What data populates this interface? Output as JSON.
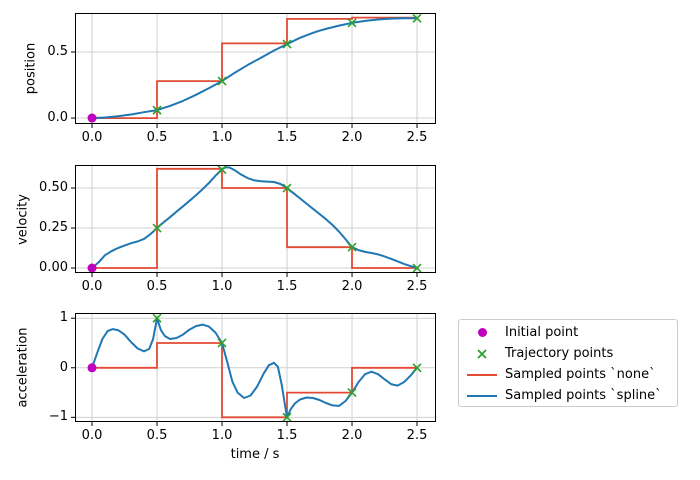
{
  "figure": {
    "background": "#ffffff"
  },
  "colors": {
    "spline": "#1f77b4",
    "none": "#e24a33",
    "trajectory": "#2ca02c",
    "initial": "#bf00bf",
    "grid": "#d0d0d0",
    "spine": "#000000",
    "text": "#000000",
    "legend_border": "#cccccc"
  },
  "legend": {
    "items": [
      {
        "label": "Initial point",
        "marker": "circle",
        "color_key": "initial"
      },
      {
        "label": "Trajectory points",
        "marker": "x",
        "color_key": "trajectory"
      },
      {
        "label": "Sampled points `none`",
        "marker": "line",
        "color_key": "none"
      },
      {
        "label": "Sampled points `spline`",
        "marker": "line",
        "color_key": "spline"
      }
    ]
  },
  "chart_data": {
    "type": "line",
    "title": "",
    "xlabel": "time / s",
    "xlim": [
      -0.131,
      2.646
    ],
    "x_ticks": [
      0.0,
      0.5,
      1.0,
      1.5,
      2.0,
      2.5
    ],
    "x_tick_labels": [
      "0.0",
      "0.5",
      "1.0",
      "1.5",
      "2.0",
      "2.5"
    ],
    "grid": true,
    "legend_position": "outside lower right",
    "trajectory_times": [
      0.5,
      1.0,
      1.5,
      2.0,
      2.5
    ],
    "subplots": [
      {
        "ylabel": "position",
        "ylim": [
          -0.045,
          0.795
        ],
        "y_ticks": [
          0.0,
          0.5
        ],
        "y_tick_labels": [
          "0.0",
          "0.5"
        ],
        "initial_point": [
          0.0,
          0.0
        ],
        "trajectory_values": [
          0.06,
          0.28,
          0.56,
          0.72,
          0.755
        ],
        "none_step_edges": [
          0.0,
          0.5,
          1.0,
          1.5,
          2.0,
          2.5
        ],
        "none_step_levels": [
          0.0,
          0.28,
          0.565,
          0.75,
          0.76
        ],
        "spline": [
          [
            0,
            0
          ],
          [
            0.1,
            0.004
          ],
          [
            0.2,
            0.013
          ],
          [
            0.3,
            0.027
          ],
          [
            0.4,
            0.044
          ],
          [
            0.5,
            0.06
          ],
          [
            0.6,
            0.092
          ],
          [
            0.7,
            0.13
          ],
          [
            0.8,
            0.176
          ],
          [
            0.9,
            0.227
          ],
          [
            1.0,
            0.28
          ],
          [
            1.1,
            0.344
          ],
          [
            1.2,
            0.403
          ],
          [
            1.3,
            0.457
          ],
          [
            1.4,
            0.511
          ],
          [
            1.5,
            0.56
          ],
          [
            1.6,
            0.607
          ],
          [
            1.7,
            0.645
          ],
          [
            1.75,
            0.661
          ],
          [
            1.8,
            0.675
          ],
          [
            1.9,
            0.7
          ],
          [
            2.0,
            0.72
          ],
          [
            2.1,
            0.735
          ],
          [
            2.2,
            0.746
          ],
          [
            2.3,
            0.753
          ],
          [
            2.4,
            0.7555
          ],
          [
            2.5,
            0.756
          ]
        ]
      },
      {
        "ylabel": "velocity",
        "ylim": [
          -0.031,
          0.644
        ],
        "y_ticks": [
          0.0,
          0.25,
          0.5
        ],
        "y_tick_labels": [
          "0.00",
          "0.25",
          "0.50"
        ],
        "initial_point": [
          0.0,
          0.0
        ],
        "trajectory_values": [
          0.25,
          0.615,
          0.5,
          0.13,
          0.0
        ],
        "none_step_edges": [
          0.0,
          0.5,
          1.0,
          1.5,
          2.0,
          2.5
        ],
        "none_step_levels": [
          0.0,
          0.62,
          0.5,
          0.13,
          0.0
        ],
        "spline": [
          [
            0,
            0
          ],
          [
            0.05,
            0.035
          ],
          [
            0.1,
            0.08
          ],
          [
            0.15,
            0.105
          ],
          [
            0.2,
            0.125
          ],
          [
            0.25,
            0.14
          ],
          [
            0.3,
            0.155
          ],
          [
            0.35,
            0.166
          ],
          [
            0.4,
            0.182
          ],
          [
            0.45,
            0.212
          ],
          [
            0.5,
            0.25
          ],
          [
            0.55,
            0.285
          ],
          [
            0.6,
            0.318
          ],
          [
            0.65,
            0.352
          ],
          [
            0.7,
            0.386
          ],
          [
            0.75,
            0.42
          ],
          [
            0.8,
            0.455
          ],
          [
            0.85,
            0.492
          ],
          [
            0.9,
            0.532
          ],
          [
            0.95,
            0.577
          ],
          [
            1.0,
            0.618
          ],
          [
            1.03,
            0.63
          ],
          [
            1.06,
            0.628
          ],
          [
            1.1,
            0.61
          ],
          [
            1.15,
            0.583
          ],
          [
            1.2,
            0.561
          ],
          [
            1.25,
            0.548
          ],
          [
            1.3,
            0.542
          ],
          [
            1.35,
            0.54
          ],
          [
            1.4,
            0.538
          ],
          [
            1.45,
            0.525
          ],
          [
            1.5,
            0.5
          ],
          [
            1.55,
            0.468
          ],
          [
            1.6,
            0.435
          ],
          [
            1.65,
            0.403
          ],
          [
            1.7,
            0.37
          ],
          [
            1.75,
            0.338
          ],
          [
            1.8,
            0.305
          ],
          [
            1.85,
            0.269
          ],
          [
            1.9,
            0.228
          ],
          [
            1.95,
            0.181
          ],
          [
            2.0,
            0.13
          ],
          [
            2.05,
            0.112
          ],
          [
            2.1,
            0.101
          ],
          [
            2.15,
            0.094
          ],
          [
            2.2,
            0.085
          ],
          [
            2.25,
            0.073
          ],
          [
            2.3,
            0.058
          ],
          [
            2.35,
            0.042
          ],
          [
            2.4,
            0.026
          ],
          [
            2.45,
            0.012
          ],
          [
            2.5,
            0
          ]
        ]
      },
      {
        "ylabel": "acceleration",
        "ylim": [
          -1.094,
          1.105
        ],
        "y_ticks": [
          -1,
          0,
          1
        ],
        "y_tick_labels": [
          "−1",
          "0",
          "1"
        ],
        "initial_point": [
          0.0,
          0.0
        ],
        "trajectory_values": [
          1.0,
          0.5,
          -1.0,
          -0.5,
          0.0
        ],
        "none_step_edges": [
          0.0,
          0.5,
          1.0,
          1.5,
          2.0,
          2.5
        ],
        "none_step_levels": [
          0.0,
          0.5,
          -1.0,
          -0.5,
          0.0
        ],
        "spline": [
          [
            0,
            0
          ],
          [
            0.04,
            0.3
          ],
          [
            0.08,
            0.58
          ],
          [
            0.12,
            0.74
          ],
          [
            0.16,
            0.78
          ],
          [
            0.2,
            0.76
          ],
          [
            0.25,
            0.67
          ],
          [
            0.3,
            0.52
          ],
          [
            0.35,
            0.39
          ],
          [
            0.4,
            0.33
          ],
          [
            0.44,
            0.38
          ],
          [
            0.47,
            0.58
          ],
          [
            0.5,
            1.0
          ],
          [
            0.53,
            0.76
          ],
          [
            0.56,
            0.64
          ],
          [
            0.6,
            0.58
          ],
          [
            0.65,
            0.6
          ],
          [
            0.7,
            0.67
          ],
          [
            0.75,
            0.77
          ],
          [
            0.8,
            0.84
          ],
          [
            0.85,
            0.87
          ],
          [
            0.9,
            0.83
          ],
          [
            0.95,
            0.71
          ],
          [
            1.0,
            0.5
          ],
          [
            1.04,
            0.12
          ],
          [
            1.08,
            -0.28
          ],
          [
            1.12,
            -0.5
          ],
          [
            1.17,
            -0.61
          ],
          [
            1.22,
            -0.56
          ],
          [
            1.27,
            -0.38
          ],
          [
            1.32,
            -0.12
          ],
          [
            1.36,
            0.05
          ],
          [
            1.4,
            0.1
          ],
          [
            1.43,
            0.02
          ],
          [
            1.46,
            -0.35
          ],
          [
            1.48,
            -0.68
          ],
          [
            1.5,
            -1.0
          ],
          [
            1.53,
            -0.83
          ],
          [
            1.56,
            -0.72
          ],
          [
            1.6,
            -0.64
          ],
          [
            1.65,
            -0.6
          ],
          [
            1.7,
            -0.61
          ],
          [
            1.75,
            -0.65
          ],
          [
            1.8,
            -0.71
          ],
          [
            1.85,
            -0.76
          ],
          [
            1.9,
            -0.77
          ],
          [
            1.95,
            -0.67
          ],
          [
            2.0,
            -0.5
          ],
          [
            2.05,
            -0.29
          ],
          [
            2.1,
            -0.13
          ],
          [
            2.15,
            -0.08
          ],
          [
            2.2,
            -0.13
          ],
          [
            2.25,
            -0.23
          ],
          [
            2.3,
            -0.33
          ],
          [
            2.35,
            -0.36
          ],
          [
            2.4,
            -0.29
          ],
          [
            2.45,
            -0.16
          ],
          [
            2.5,
            0
          ]
        ]
      }
    ]
  }
}
